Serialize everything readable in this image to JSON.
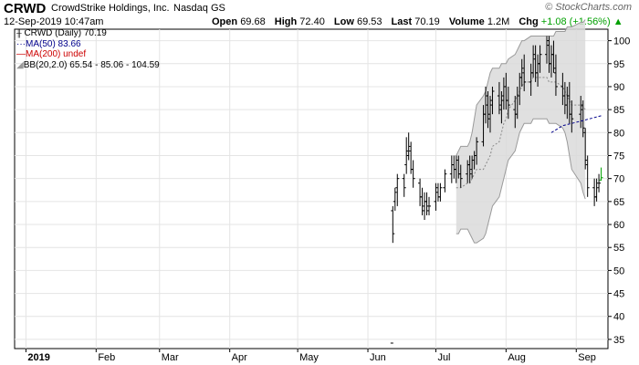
{
  "header": {
    "ticker": "CRWD",
    "company": "CrowdStrike Holdings, Inc.",
    "exchange": "Nasdaq GS",
    "site": "© StockCharts.com",
    "datetime": "12-Sep-2019 10:47am",
    "open_label": "Open",
    "open": "69.68",
    "high_label": "High",
    "high": "72.40",
    "low_label": "Low",
    "low": "69.53",
    "last_label": "Last",
    "last": "70.19",
    "volume_label": "Volume",
    "volume": "1.2M",
    "chg_label": "Chg",
    "chg": "+1.08 (+1.56%)"
  },
  "legend": {
    "price": "CRWD (Daily) 70.19",
    "ma50": "MA(50) 83.66",
    "ma200": "MA(200) undef",
    "bb": "BB(20,2.0) 65.54 - 85.06 - 104.59"
  },
  "colors": {
    "bar": "#000000",
    "up_last": "#00a000",
    "ma50": "#00008b",
    "ma200": "#cc0000",
    "bb_fill": "#dadada",
    "bb_mid": "#888888",
    "grid": "#e4e4e4"
  },
  "chart_data": {
    "type": "ohlc",
    "y_ticks": [
      35,
      40,
      45,
      50,
      55,
      60,
      65,
      70,
      75,
      80,
      85,
      90,
      95,
      100
    ],
    "ylim": [
      33,
      102.5
    ],
    "x_labels": [
      "2019",
      "Feb",
      "Mar",
      "Apr",
      "May",
      "Jun",
      "Jul",
      "Aug",
      "Sep"
    ],
    "bars": [
      {
        "date": "2019-06-12",
        "open": 63,
        "high": 64,
        "low": 56,
        "close": 58
      },
      {
        "date": "2019-06-13",
        "open": 65,
        "high": 68,
        "low": 63,
        "close": 67
      },
      {
        "date": "2019-06-14",
        "open": 68,
        "high": 71,
        "low": 64,
        "close": 70
      },
      {
        "date": "2019-06-17",
        "open": 70,
        "high": 71,
        "low": 66,
        "close": 68
      },
      {
        "date": "2019-06-18",
        "open": 73,
        "high": 79,
        "low": 71,
        "close": 76
      },
      {
        "date": "2019-06-19",
        "open": 75,
        "high": 80,
        "low": 74,
        "close": 77
      },
      {
        "date": "2019-06-20",
        "open": 76,
        "high": 78,
        "low": 71,
        "close": 72
      },
      {
        "date": "2019-06-21",
        "open": 72,
        "high": 74,
        "low": 68,
        "close": 70
      },
      {
        "date": "2019-06-24",
        "open": 69,
        "high": 70,
        "low": 64,
        "close": 66
      },
      {
        "date": "2019-06-25",
        "open": 66,
        "high": 68,
        "low": 62,
        "close": 63
      },
      {
        "date": "2019-06-26",
        "open": 64,
        "high": 67,
        "low": 61,
        "close": 65
      },
      {
        "date": "2019-06-27",
        "open": 65,
        "high": 67,
        "low": 62,
        "close": 63
      },
      {
        "date": "2019-06-28",
        "open": 64,
        "high": 66,
        "low": 62,
        "close": 64
      },
      {
        "date": "2019-07-01",
        "open": 65,
        "high": 69,
        "low": 63,
        "close": 68
      },
      {
        "date": "2019-07-02",
        "open": 67,
        "high": 69,
        "low": 65,
        "close": 66
      },
      {
        "date": "2019-07-03",
        "open": 66,
        "high": 69,
        "low": 65,
        "close": 68
      },
      {
        "date": "2019-07-05",
        "open": 68,
        "high": 72,
        "low": 67,
        "close": 71
      },
      {
        "date": "2019-07-08",
        "open": 71,
        "high": 75,
        "low": 69,
        "close": 73
      },
      {
        "date": "2019-07-09",
        "open": 73,
        "high": 75,
        "low": 70,
        "close": 72
      },
      {
        "date": "2019-07-10",
        "open": 72,
        "high": 75,
        "low": 69,
        "close": 74
      },
      {
        "date": "2019-07-11",
        "open": 74,
        "high": 75,
        "low": 70,
        "close": 71
      },
      {
        "date": "2019-07-12",
        "open": 71,
        "high": 73,
        "low": 68,
        "close": 70
      },
      {
        "date": "2019-07-15",
        "open": 71,
        "high": 74,
        "low": 69,
        "close": 73
      },
      {
        "date": "2019-07-16",
        "open": 73,
        "high": 75,
        "low": 69,
        "close": 71
      },
      {
        "date": "2019-07-17",
        "open": 72,
        "high": 75,
        "low": 70,
        "close": 74
      },
      {
        "date": "2019-07-18",
        "open": 74,
        "high": 76,
        "low": 72,
        "close": 75
      },
      {
        "date": "2019-07-19",
        "open": 75,
        "high": 79,
        "low": 73,
        "close": 78
      },
      {
        "date": "2019-07-22",
        "open": 78,
        "high": 86,
        "low": 77,
        "close": 84
      },
      {
        "date": "2019-07-23",
        "open": 84,
        "high": 90,
        "low": 82,
        "close": 88
      },
      {
        "date": "2019-07-24",
        "open": 86,
        "high": 89,
        "low": 81,
        "close": 83
      },
      {
        "date": "2019-07-25",
        "open": 84,
        "high": 88,
        "low": 80,
        "close": 86
      },
      {
        "date": "2019-07-26",
        "open": 87,
        "high": 90,
        "low": 84,
        "close": 89
      },
      {
        "date": "2019-07-29",
        "open": 88,
        "high": 91,
        "low": 84,
        "close": 86
      },
      {
        "date": "2019-07-30",
        "open": 85,
        "high": 89,
        "low": 82,
        "close": 87
      },
      {
        "date": "2019-07-31",
        "open": 88,
        "high": 92,
        "low": 85,
        "close": 90
      },
      {
        "date": "2019-08-01",
        "open": 90,
        "high": 93,
        "low": 85,
        "close": 87
      },
      {
        "date": "2019-08-02",
        "open": 87,
        "high": 90,
        "low": 83,
        "close": 86
      },
      {
        "date": "2019-08-05",
        "open": 85,
        "high": 88,
        "low": 81,
        "close": 84
      },
      {
        "date": "2019-08-06",
        "open": 84,
        "high": 90,
        "low": 83,
        "close": 88
      },
      {
        "date": "2019-08-07",
        "open": 88,
        "high": 93,
        "low": 86,
        "close": 92
      },
      {
        "date": "2019-08-08",
        "open": 92,
        "high": 96,
        "low": 90,
        "close": 94
      },
      {
        "date": "2019-08-09",
        "open": 93,
        "high": 97,
        "low": 89,
        "close": 91
      },
      {
        "date": "2019-08-12",
        "open": 91,
        "high": 95,
        "low": 88,
        "close": 93
      },
      {
        "date": "2019-08-13",
        "open": 93,
        "high": 99,
        "low": 92,
        "close": 97
      },
      {
        "date": "2019-08-14",
        "open": 96,
        "high": 99,
        "low": 91,
        "close": 93
      },
      {
        "date": "2019-08-15",
        "open": 93,
        "high": 97,
        "low": 90,
        "close": 95
      },
      {
        "date": "2019-08-16",
        "open": 95,
        "high": 99,
        "low": 93,
        "close": 97
      },
      {
        "date": "2019-08-19",
        "open": 97,
        "high": 101,
        "low": 95,
        "close": 100
      },
      {
        "date": "2019-08-20",
        "open": 99,
        "high": 101,
        "low": 93,
        "close": 95
      },
      {
        "date": "2019-08-21",
        "open": 95,
        "high": 99,
        "low": 92,
        "close": 97
      },
      {
        "date": "2019-08-22",
        "open": 97,
        "high": 100,
        "low": 93,
        "close": 94
      },
      {
        "date": "2019-08-23",
        "open": 93,
        "high": 97,
        "low": 88,
        "close": 90
      },
      {
        "date": "2019-08-26",
        "open": 90,
        "high": 93,
        "low": 86,
        "close": 88
      },
      {
        "date": "2019-08-27",
        "open": 88,
        "high": 91,
        "low": 84,
        "close": 86
      },
      {
        "date": "2019-08-28",
        "open": 86,
        "high": 90,
        "low": 83,
        "close": 88
      },
      {
        "date": "2019-08-29",
        "open": 88,
        "high": 91,
        "low": 82,
        "close": 84
      },
      {
        "date": "2019-08-30",
        "open": 84,
        "high": 87,
        "low": 80,
        "close": 83
      },
      {
        "date": "2019-09-03",
        "open": 84,
        "high": 88,
        "low": 81,
        "close": 85
      },
      {
        "date": "2019-09-04",
        "open": 86,
        "high": 87,
        "low": 79,
        "close": 81
      },
      {
        "date": "2019-09-05",
        "open": 80,
        "high": 81,
        "low": 72,
        "close": 74
      },
      {
        "date": "2019-09-06",
        "open": 73,
        "high": 75,
        "low": 66,
        "close": 68
      },
      {
        "date": "2019-09-09",
        "open": 68,
        "high": 70,
        "low": 64,
        "close": 66
      },
      {
        "date": "2019-09-10",
        "open": 66,
        "high": 70,
        "low": 65,
        "close": 69
      },
      {
        "date": "2019-09-11",
        "open": 68,
        "high": 71,
        "low": 67,
        "close": 69
      },
      {
        "date": "2019-09-12",
        "open": 69.68,
        "high": 72.4,
        "low": 69.53,
        "close": 70.19
      }
    ],
    "ma50": [
      {
        "date": "2019-08-21",
        "value": 80
      },
      {
        "date": "2019-08-26",
        "value": 81.5
      },
      {
        "date": "2019-09-03",
        "value": 82.5
      },
      {
        "date": "2019-09-12",
        "value": 83.66
      }
    ],
    "bb_start": "2019-07-10",
    "bb_upper": [
      75,
      76,
      77,
      77,
      78,
      80,
      83,
      86,
      88,
      89,
      91,
      93,
      94,
      94,
      95,
      95,
      95,
      96,
      97,
      98,
      99,
      100,
      100,
      101,
      101,
      101,
      101,
      101,
      101,
      101,
      101,
      101,
      102,
      102,
      102,
      103,
      103,
      103,
      104,
      104,
      104.59
    ],
    "bb_lower": [
      58,
      58,
      59,
      59,
      58,
      57,
      56,
      56,
      57,
      58,
      60,
      62,
      64,
      66,
      68,
      70,
      72,
      74,
      76,
      78,
      80,
      81,
      82,
      82,
      83,
      83,
      83,
      83,
      83,
      82,
      82,
      82,
      82,
      81,
      80,
      78,
      75,
      72,
      69,
      67,
      65.54
    ],
    "bb_mid": [
      68,
      68,
      68,
      69,
      69,
      70,
      71,
      72,
      72,
      73,
      74,
      75,
      77,
      78,
      80,
      82,
      83,
      85,
      87,
      88,
      89,
      90,
      91,
      91,
      92,
      92,
      92,
      92,
      92,
      91,
      91,
      91,
      91,
      90,
      89,
      88,
      87,
      86,
      86,
      85.5,
      85.06
    ]
  }
}
